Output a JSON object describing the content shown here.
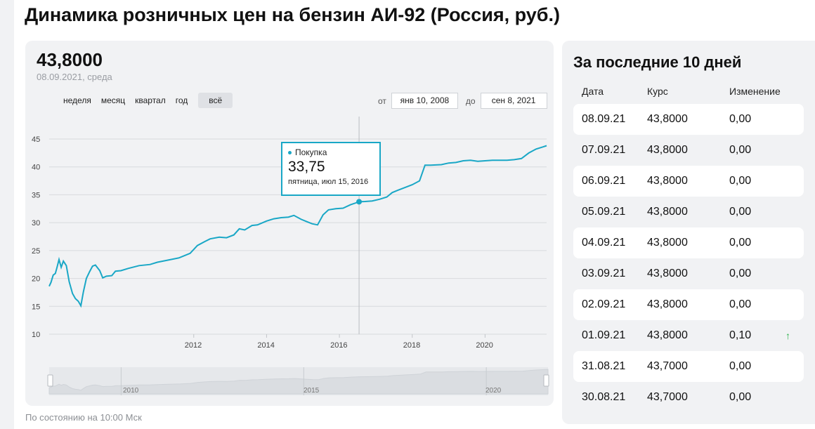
{
  "page": {
    "title": "Динамика розничных цен на бензин АИ-92 (Россия, руб.)",
    "status_note": "По состоянию на 10:00 Мск"
  },
  "chart_panel": {
    "current_value": "43,8000",
    "current_date": "08.09.2021, среда",
    "periods": [
      "неделя",
      "месяц",
      "квартал",
      "год",
      "всё"
    ],
    "active_period": "всё",
    "range_from_label": "от",
    "range_from_value": "янв 10, 2008",
    "range_to_label": "до",
    "range_to_value": "сен 8, 2021",
    "tooltip": {
      "series_name": "Покупка",
      "value": "33,75",
      "date": "пятница, июл 15, 2016"
    },
    "navigator_labels": [
      "2010",
      "2015",
      "2020"
    ]
  },
  "chart_data": {
    "type": "line",
    "series": [
      {
        "name": "Покупка",
        "points": [
          [
            2008.03,
            18.6
          ],
          [
            2008.08,
            19.3
          ],
          [
            2008.14,
            20.6
          ],
          [
            2008.2,
            20.9
          ],
          [
            2008.25,
            22.1
          ],
          [
            2008.3,
            23.4
          ],
          [
            2008.36,
            22.0
          ],
          [
            2008.42,
            23.1
          ],
          [
            2008.5,
            22.3
          ],
          [
            2008.58,
            19.4
          ],
          [
            2008.67,
            17.3
          ],
          [
            2008.75,
            16.4
          ],
          [
            2008.83,
            15.9
          ],
          [
            2008.9,
            15.1
          ],
          [
            2008.97,
            17.6
          ],
          [
            2009.05,
            20.0
          ],
          [
            2009.14,
            21.2
          ],
          [
            2009.22,
            22.2
          ],
          [
            2009.3,
            22.4
          ],
          [
            2009.42,
            21.4
          ],
          [
            2009.5,
            20.1
          ],
          [
            2009.6,
            20.4
          ],
          [
            2009.75,
            20.5
          ],
          [
            2009.85,
            21.3
          ],
          [
            2010.0,
            21.4
          ],
          [
            2010.2,
            21.8
          ],
          [
            2010.5,
            22.3
          ],
          [
            2010.8,
            22.5
          ],
          [
            2011.0,
            22.9
          ],
          [
            2011.3,
            23.3
          ],
          [
            2011.6,
            23.7
          ],
          [
            2011.9,
            24.5
          ],
          [
            2012.1,
            25.9
          ],
          [
            2012.3,
            26.6
          ],
          [
            2012.45,
            27.1
          ],
          [
            2012.7,
            27.4
          ],
          [
            2012.9,
            27.3
          ],
          [
            2013.1,
            27.8
          ],
          [
            2013.25,
            28.9
          ],
          [
            2013.4,
            28.7
          ],
          [
            2013.6,
            29.5
          ],
          [
            2013.75,
            29.6
          ],
          [
            2014.0,
            30.3
          ],
          [
            2014.2,
            30.7
          ],
          [
            2014.4,
            30.9
          ],
          [
            2014.6,
            31.0
          ],
          [
            2014.75,
            31.3
          ],
          [
            2014.95,
            30.6
          ],
          [
            2015.1,
            30.2
          ],
          [
            2015.25,
            29.8
          ],
          [
            2015.4,
            29.6
          ],
          [
            2015.55,
            31.4
          ],
          [
            2015.7,
            32.3
          ],
          [
            2015.9,
            32.5
          ],
          [
            2016.1,
            32.6
          ],
          [
            2016.3,
            33.2
          ],
          [
            2016.54,
            33.75
          ],
          [
            2016.7,
            33.8
          ],
          [
            2016.9,
            33.9
          ],
          [
            2017.1,
            34.2
          ],
          [
            2017.3,
            34.6
          ],
          [
            2017.45,
            35.4
          ],
          [
            2017.6,
            35.8
          ],
          [
            2017.8,
            36.3
          ],
          [
            2018.0,
            36.8
          ],
          [
            2018.2,
            37.5
          ],
          [
            2018.35,
            40.3
          ],
          [
            2018.5,
            40.3
          ],
          [
            2018.8,
            40.4
          ],
          [
            2019.0,
            40.7
          ],
          [
            2019.2,
            40.8
          ],
          [
            2019.4,
            41.1
          ],
          [
            2019.6,
            41.2
          ],
          [
            2019.8,
            41.0
          ],
          [
            2020.0,
            41.1
          ],
          [
            2020.2,
            41.2
          ],
          [
            2020.4,
            41.2
          ],
          [
            2020.6,
            41.2
          ],
          [
            2020.8,
            41.3
          ],
          [
            2021.0,
            41.5
          ],
          [
            2021.2,
            42.5
          ],
          [
            2021.4,
            43.2
          ],
          [
            2021.6,
            43.6
          ],
          [
            2021.69,
            43.8
          ]
        ]
      }
    ],
    "highlight": {
      "x": 2016.54,
      "y": 33.75
    },
    "xlim": [
      2008.03,
      2021.69
    ],
    "ylim": [
      10,
      45
    ],
    "y_ticks": [
      10,
      15,
      20,
      25,
      30,
      35,
      40,
      45
    ],
    "x_ticks": [
      2012,
      2014,
      2016,
      2018,
      2020
    ],
    "grid": true,
    "color": "#19a7c6"
  },
  "table": {
    "title": "За последние 10 дней",
    "headers": {
      "date": "Дата",
      "rate": "Курс",
      "change": "Изменение"
    },
    "rows": [
      {
        "date": "08.09.21",
        "rate": "43,8000",
        "change": "0,00",
        "up": false
      },
      {
        "date": "07.09.21",
        "rate": "43,8000",
        "change": "0,00",
        "up": false
      },
      {
        "date": "06.09.21",
        "rate": "43,8000",
        "change": "0,00",
        "up": false
      },
      {
        "date": "05.09.21",
        "rate": "43,8000",
        "change": "0,00",
        "up": false
      },
      {
        "date": "04.09.21",
        "rate": "43,8000",
        "change": "0,00",
        "up": false
      },
      {
        "date": "03.09.21",
        "rate": "43,8000",
        "change": "0,00",
        "up": false
      },
      {
        "date": "02.09.21",
        "rate": "43,8000",
        "change": "0,00",
        "up": false
      },
      {
        "date": "01.09.21",
        "rate": "43,8000",
        "change": "0,10",
        "up": true
      },
      {
        "date": "31.08.21",
        "rate": "43,7000",
        "change": "0,00",
        "up": false
      },
      {
        "date": "30.08.21",
        "rate": "43,7000",
        "change": "0,00",
        "up": false
      }
    ],
    "up_icon": "↑",
    "up_color": "#2bb24c"
  }
}
